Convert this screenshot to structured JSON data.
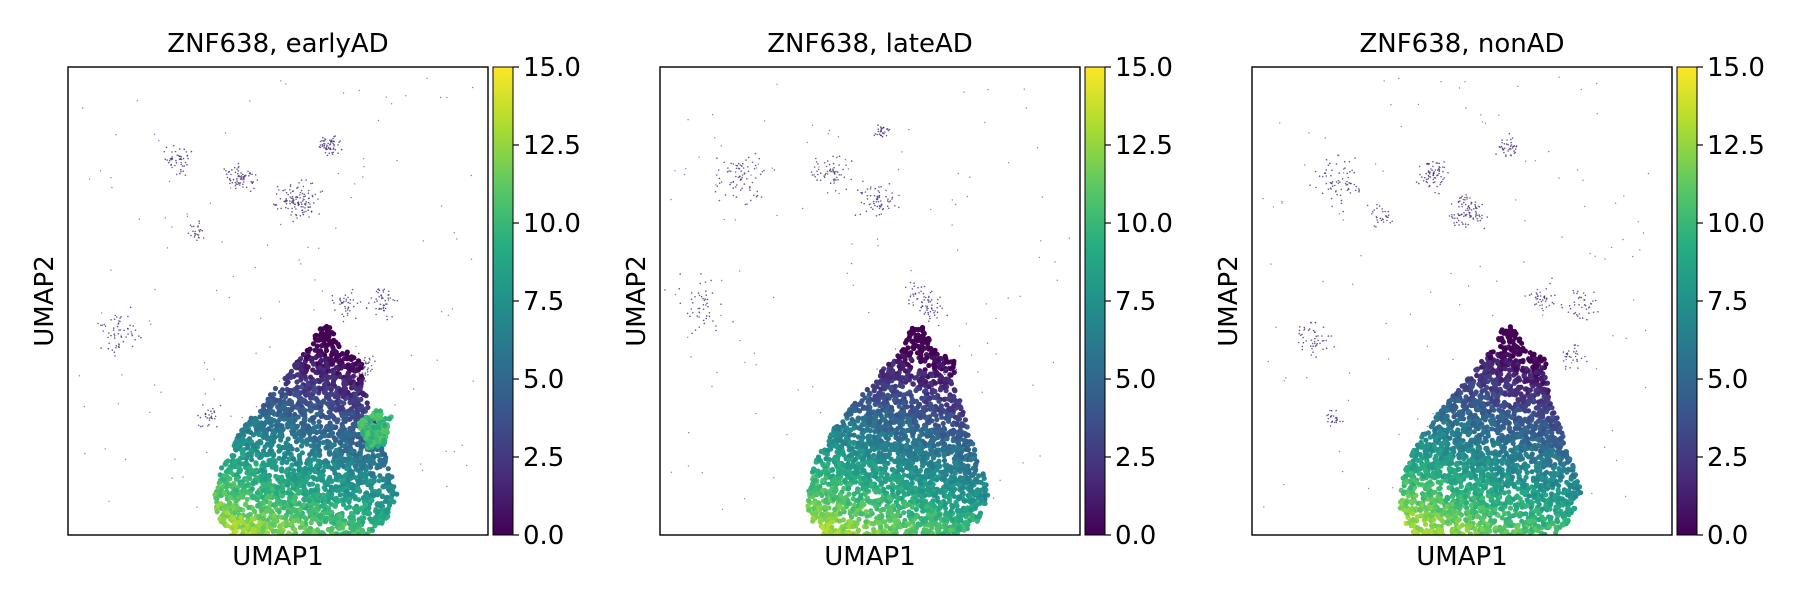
{
  "chart_data": [
    {
      "type": "scatter",
      "title": "ZNF638, earlyAD",
      "xlabel": "UMAP1",
      "ylabel": "UMAP2",
      "colorbar": {
        "colormap": "viridis",
        "range": [
          0.0,
          15.0
        ],
        "ticks": [
          "0.0",
          "2.5",
          "5.0",
          "7.5",
          "10.0",
          "12.5",
          "15.0"
        ]
      },
      "x_ticks_shown": false,
      "y_ticks_shown": false,
      "grid": false,
      "main_cluster": "dense cone-shaped cluster, low (0–2.5) at top rising to high (10–15) at bottom-left; side lobe on right with values ~7–10",
      "minor_clusters": "sparse scattered cells with low values (~0–2)"
    },
    {
      "type": "scatter",
      "title": "ZNF638, lateAD",
      "xlabel": "UMAP1",
      "ylabel": "UMAP2",
      "colorbar": {
        "colormap": "viridis",
        "range": [
          0.0,
          15.0
        ],
        "ticks": [
          "0.0",
          "2.5",
          "5.0",
          "7.5",
          "10.0",
          "12.5",
          "15.0"
        ]
      },
      "x_ticks_shown": false,
      "y_ticks_shown": false,
      "grid": false,
      "main_cluster": "dense cone-shaped cluster, low (0–2.5) at top rising to high (10–15) at bottom-left",
      "minor_clusters": "sparse scattered cells with low values (~0–2)"
    },
    {
      "type": "scatter",
      "title": "ZNF638, nonAD",
      "xlabel": "UMAP1",
      "ylabel": "UMAP2",
      "colorbar": {
        "colormap": "viridis",
        "range": [
          0.0,
          15.0
        ],
        "ticks": [
          "0.0",
          "2.5",
          "5.0",
          "7.5",
          "10.0",
          "12.5",
          "15.0"
        ]
      },
      "x_ticks_shown": false,
      "y_ticks_shown": false,
      "grid": false,
      "main_cluster": "dense cone-shaped cluster, low (0–2.5) at top rising to high (10–15) at bottom-left",
      "minor_clusters": "sparse scattered cells with low values (~0–2)"
    }
  ]
}
